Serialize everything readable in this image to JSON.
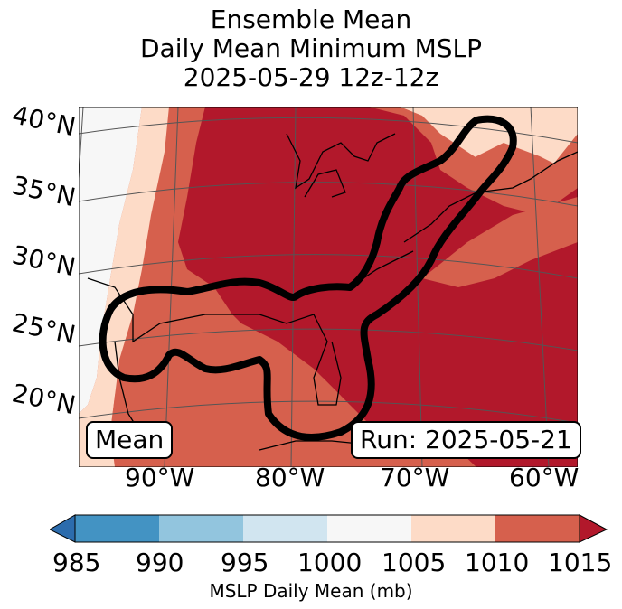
{
  "title": {
    "line1": "Ensemble Mean",
    "line2": "Daily Mean Minimum MSLP",
    "line3": "2025-05-29 12z-12z"
  },
  "map": {
    "lat_labels": [
      "40°N",
      "35°N",
      "30°N",
      "25°N",
      "20°N"
    ],
    "lon_labels": [
      "90°W",
      "80°W",
      "70°W",
      "60°W"
    ],
    "mean_label": "Mean",
    "run_label": "Run: 2025-05-21",
    "colors": {
      "c985": "#2c6cad",
      "c990": "#4393c3",
      "c995": "#92c5de",
      "c1000": "#d1e5f0",
      "c1005": "#f7f7f7",
      "c1010": "#fddbc7",
      "c1015": "#d6604d",
      "c_over": "#b2182b"
    }
  },
  "colorbar": {
    "ticks": [
      "985",
      "990",
      "995",
      "1000",
      "1005",
      "1010",
      "1015"
    ],
    "label": "MSLP Daily Mean (mb)"
  }
}
